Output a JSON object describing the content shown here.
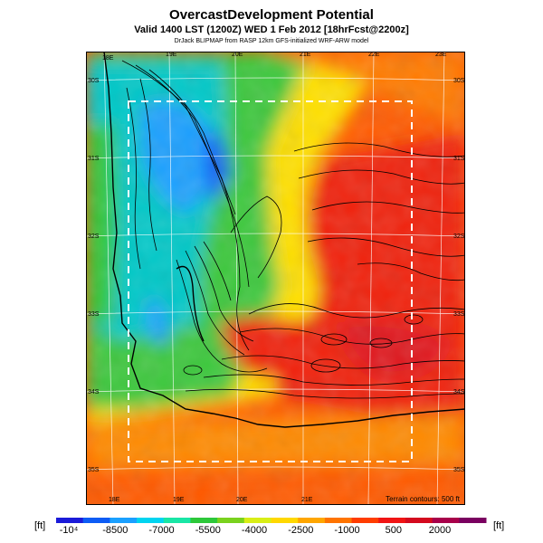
{
  "header": {
    "title": "OvercastDevelopment Potential",
    "subtitle": "Valid 1400 LST (1200Z) WED 1 Feb 2012 [18hrFcst@2200z]",
    "credit": "DrJack BLIPMAP from RASP 12km GFS-initialized WRF-ARW model"
  },
  "map": {
    "lon_labels_top": [
      "18E",
      "19E",
      "20E",
      "21E",
      "22E",
      "23E"
    ],
    "lon_labels_bottom": [
      "18E",
      "19E",
      "20E",
      "21E"
    ],
    "lat_labels_left": [
      "30S",
      "31S",
      "32S",
      "33S",
      "34S",
      "35S"
    ],
    "lat_labels_right": [
      "30S",
      "31S",
      "32S",
      "33S",
      "34S",
      "35S"
    ],
    "terrain_note": "Terrain contours: 500 ft"
  },
  "legend": {
    "unit_left": "[ft]",
    "unit_right": "[ft]",
    "ticks": [
      "-10⁴",
      "-8500",
      "-7000",
      "-5500",
      "-4000",
      "-2500",
      "-1000",
      "500",
      "2000"
    ],
    "colors": [
      "#1b1bd9",
      "#0d5cf5",
      "#1aa0ff",
      "#00d4f0",
      "#19e6a6",
      "#2dc83a",
      "#7ad21e",
      "#d9ee16",
      "#ffd800",
      "#ffa600",
      "#ff7400",
      "#ff3d00",
      "#f01414",
      "#d40a1e",
      "#a8004a",
      "#7a0060"
    ]
  }
}
